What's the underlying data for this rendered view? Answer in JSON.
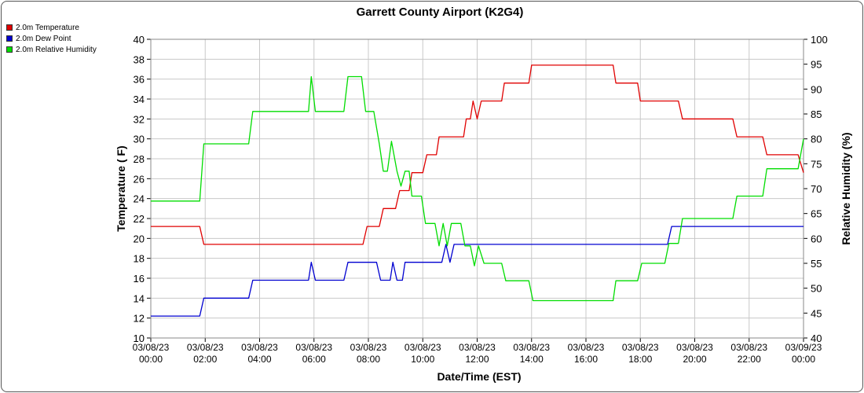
{
  "chart_data": {
    "type": "line",
    "title": "Garrett County Airport (K2G4)",
    "xlabel": "Date/Time (EST)",
    "ylabel_left": "Temperature ( F)",
    "ylabel_right": "Relative Humidity (%)",
    "ylim_left": [
      10,
      40
    ],
    "ylim_right": [
      40,
      100
    ],
    "y_ticks_left": [
      10,
      12,
      14,
      16,
      18,
      20,
      22,
      24,
      26,
      28,
      30,
      32,
      34,
      36,
      38,
      40
    ],
    "y_ticks_right": [
      40,
      45,
      50,
      55,
      60,
      65,
      70,
      75,
      80,
      85,
      90,
      95,
      100
    ],
    "x_range_hours": [
      0,
      24
    ],
    "x_ticks": [
      {
        "date": "03/08/23",
        "time": "00:00"
      },
      {
        "date": "03/08/23",
        "time": "02:00"
      },
      {
        "date": "03/08/23",
        "time": "04:00"
      },
      {
        "date": "03/08/23",
        "time": "06:00"
      },
      {
        "date": "03/08/23",
        "time": "08:00"
      },
      {
        "date": "03/08/23",
        "time": "10:00"
      },
      {
        "date": "03/08/23",
        "time": "12:00"
      },
      {
        "date": "03/08/23",
        "time": "14:00"
      },
      {
        "date": "03/08/23",
        "time": "16:00"
      },
      {
        "date": "03/08/23",
        "time": "18:00"
      },
      {
        "date": "03/08/23",
        "time": "20:00"
      },
      {
        "date": "03/08/23",
        "time": "22:00"
      },
      {
        "date": "03/09/23",
        "time": "00:00"
      }
    ],
    "grid": true,
    "legend_placement": "top-left",
    "series": [
      {
        "name": "2.0m Temperature",
        "color": "#e00000",
        "axis": "left",
        "points": [
          [
            0.0,
            21.2
          ],
          [
            1.8,
            21.2
          ],
          [
            1.95,
            19.4
          ],
          [
            7.8,
            19.4
          ],
          [
            7.95,
            21.2
          ],
          [
            8.4,
            21.2
          ],
          [
            8.55,
            23.0
          ],
          [
            9.0,
            23.0
          ],
          [
            9.15,
            24.8
          ],
          [
            9.5,
            24.8
          ],
          [
            9.6,
            26.6
          ],
          [
            10.0,
            26.6
          ],
          [
            10.15,
            28.4
          ],
          [
            10.5,
            28.4
          ],
          [
            10.6,
            30.2
          ],
          [
            11.5,
            30.2
          ],
          [
            11.6,
            32.0
          ],
          [
            11.75,
            32.0
          ],
          [
            11.85,
            33.8
          ],
          [
            12.0,
            32.0
          ],
          [
            12.15,
            33.8
          ],
          [
            12.9,
            33.8
          ],
          [
            13.0,
            35.6
          ],
          [
            13.9,
            35.6
          ],
          [
            14.0,
            37.4
          ],
          [
            17.0,
            37.4
          ],
          [
            17.1,
            35.6
          ],
          [
            17.9,
            35.6
          ],
          [
            18.0,
            33.8
          ],
          [
            19.4,
            33.8
          ],
          [
            19.55,
            32.0
          ],
          [
            21.4,
            32.0
          ],
          [
            21.55,
            30.2
          ],
          [
            22.5,
            30.2
          ],
          [
            22.65,
            28.4
          ],
          [
            23.8,
            28.4
          ],
          [
            24.0,
            26.6
          ]
        ]
      },
      {
        "name": "2.0m Dew Point",
        "color": "#0000d0",
        "axis": "left",
        "points": [
          [
            0.0,
            12.2
          ],
          [
            1.8,
            12.2
          ],
          [
            1.95,
            14.0
          ],
          [
            3.6,
            14.0
          ],
          [
            3.75,
            15.8
          ],
          [
            5.8,
            15.8
          ],
          [
            5.9,
            17.6
          ],
          [
            6.05,
            15.8
          ],
          [
            7.1,
            15.8
          ],
          [
            7.25,
            17.6
          ],
          [
            8.3,
            17.6
          ],
          [
            8.45,
            15.8
          ],
          [
            8.8,
            15.8
          ],
          [
            8.9,
            17.6
          ],
          [
            9.05,
            15.8
          ],
          [
            9.25,
            15.8
          ],
          [
            9.35,
            17.6
          ],
          [
            10.7,
            17.6
          ],
          [
            10.85,
            19.4
          ],
          [
            11.0,
            17.6
          ],
          [
            11.15,
            19.4
          ],
          [
            19.0,
            19.4
          ],
          [
            19.15,
            21.2
          ],
          [
            24.0,
            21.2
          ]
        ]
      },
      {
        "name": "2.0m Relative Humidity",
        "color": "#00dd00",
        "axis": "right",
        "points": [
          [
            0.0,
            67.5
          ],
          [
            1.8,
            67.5
          ],
          [
            1.95,
            79.0
          ],
          [
            3.6,
            79.0
          ],
          [
            3.75,
            85.5
          ],
          [
            5.8,
            85.5
          ],
          [
            5.9,
            92.5
          ],
          [
            6.05,
            85.5
          ],
          [
            7.1,
            85.5
          ],
          [
            7.25,
            92.5
          ],
          [
            7.75,
            92.5
          ],
          [
            7.9,
            85.5
          ],
          [
            8.2,
            85.5
          ],
          [
            8.4,
            79.0
          ],
          [
            8.55,
            73.5
          ],
          [
            8.7,
            73.5
          ],
          [
            8.85,
            79.5
          ],
          [
            9.05,
            73.5
          ],
          [
            9.2,
            70.5
          ],
          [
            9.35,
            73.5
          ],
          [
            9.5,
            73.5
          ],
          [
            9.6,
            68.5
          ],
          [
            9.95,
            68.5
          ],
          [
            10.1,
            63.0
          ],
          [
            10.45,
            63.0
          ],
          [
            10.6,
            58.5
          ],
          [
            10.75,
            63.0
          ],
          [
            10.9,
            58.5
          ],
          [
            11.05,
            63.0
          ],
          [
            11.4,
            63.0
          ],
          [
            11.55,
            58.5
          ],
          [
            11.75,
            58.5
          ],
          [
            11.9,
            54.5
          ],
          [
            12.05,
            58.5
          ],
          [
            12.25,
            55.0
          ],
          [
            12.9,
            55.0
          ],
          [
            13.05,
            51.5
          ],
          [
            13.9,
            51.5
          ],
          [
            14.05,
            47.5
          ],
          [
            17.0,
            47.5
          ],
          [
            17.1,
            51.5
          ],
          [
            17.9,
            51.5
          ],
          [
            18.05,
            55.0
          ],
          [
            18.9,
            55.0
          ],
          [
            19.05,
            59.0
          ],
          [
            19.4,
            59.0
          ],
          [
            19.55,
            64.0
          ],
          [
            21.4,
            64.0
          ],
          [
            21.55,
            68.5
          ],
          [
            22.5,
            68.5
          ],
          [
            22.65,
            74.0
          ],
          [
            23.8,
            74.0
          ],
          [
            24.0,
            80.0
          ]
        ]
      }
    ]
  }
}
